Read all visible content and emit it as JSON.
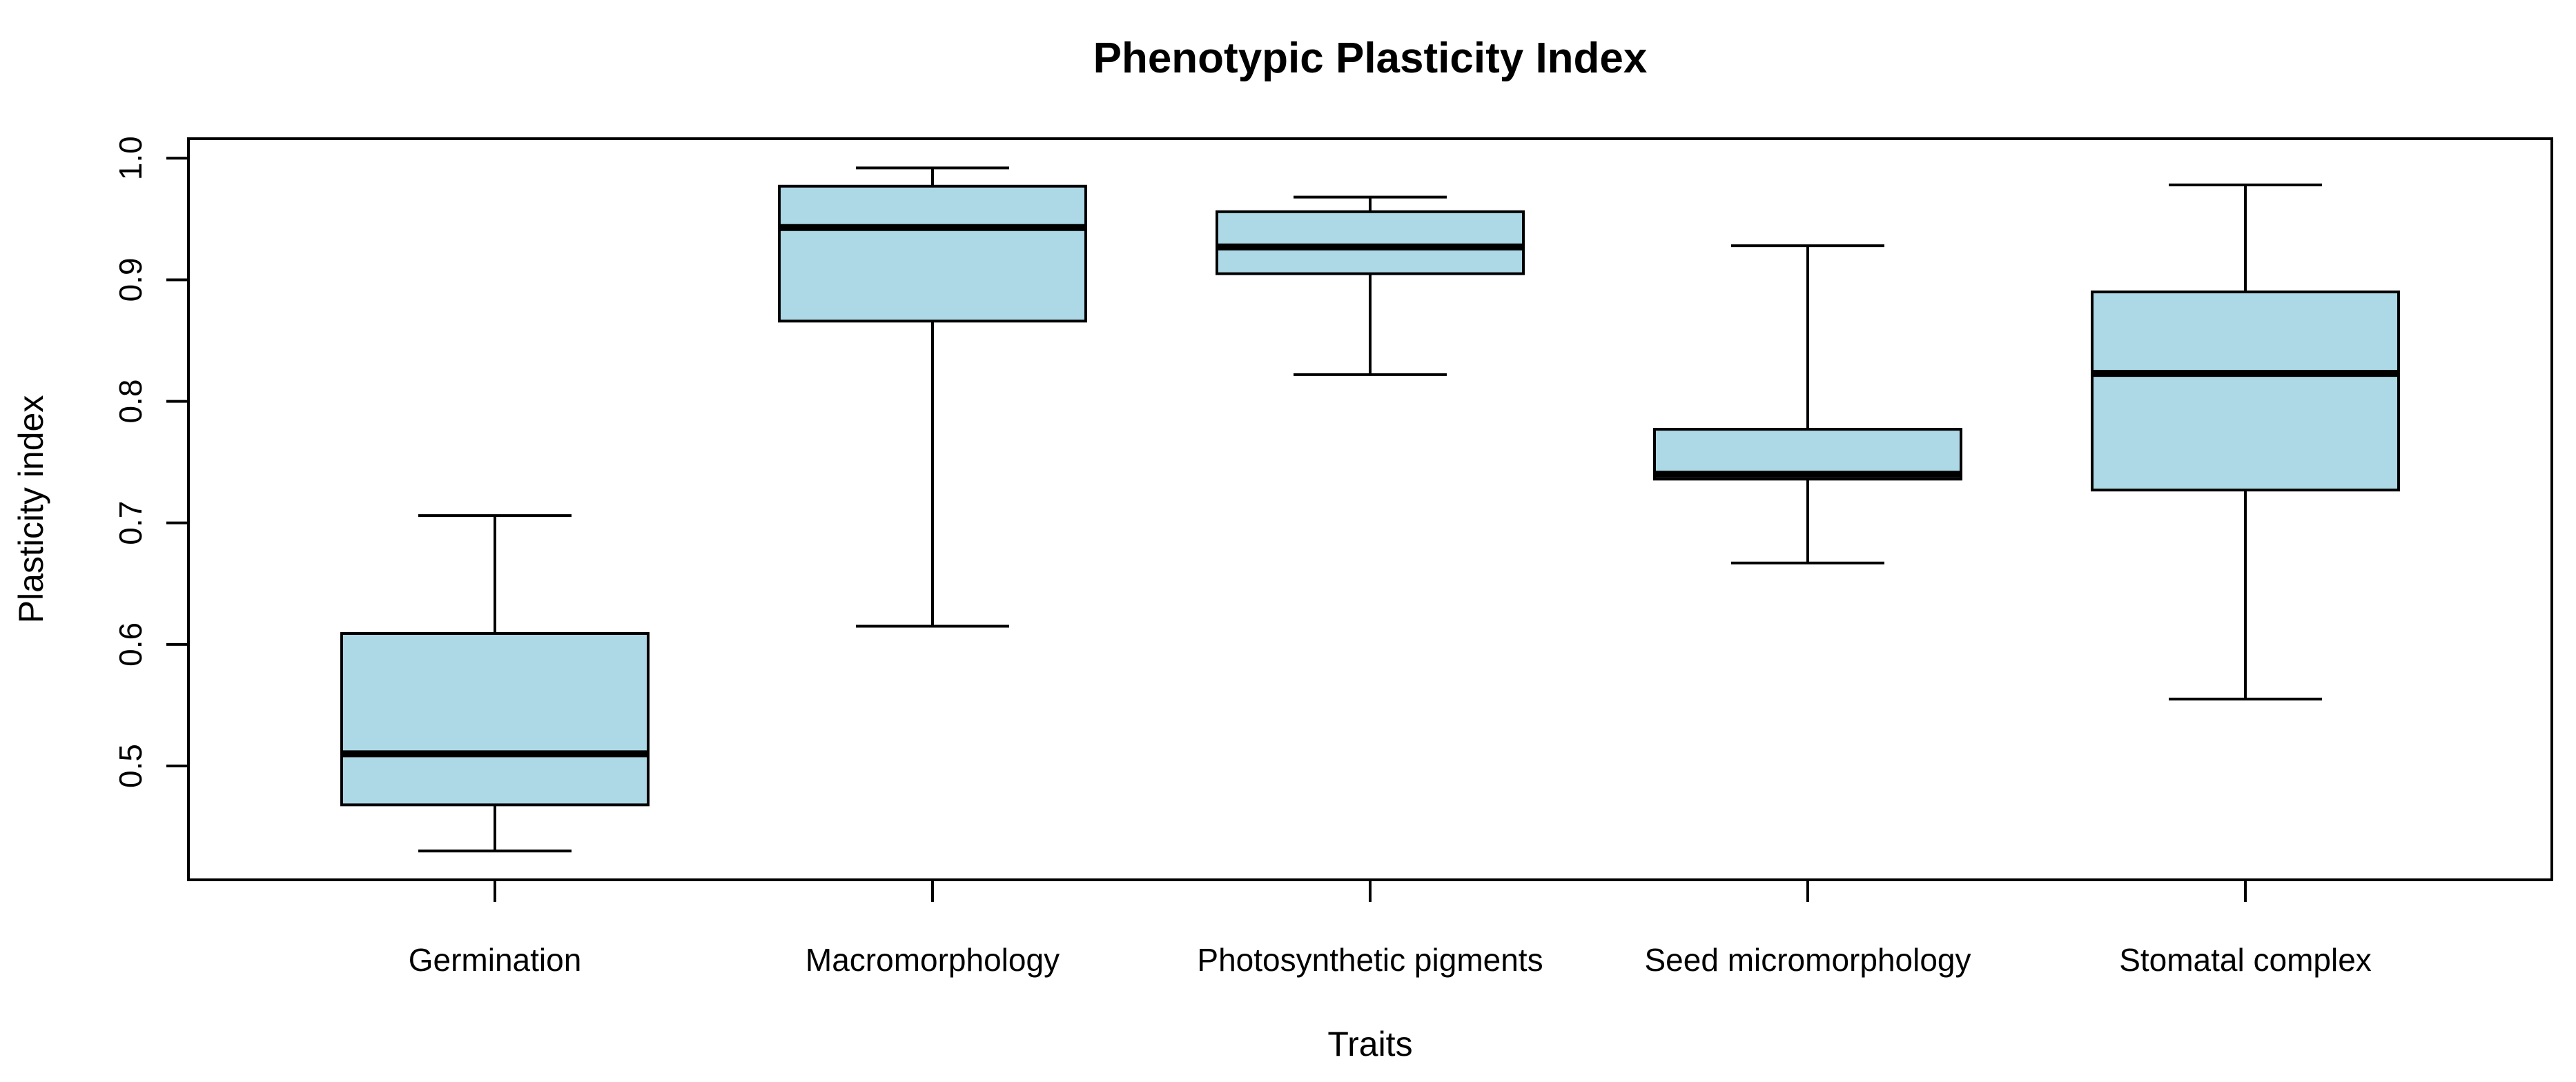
{
  "page": {
    "background": "#FFFFFF"
  },
  "chart_data": {
    "type": "boxplot",
    "title": "Phenotypic Plasticity Index",
    "xlabel": "Traits",
    "ylabel": "Plasticity index",
    "categories": [
      "Germination",
      "Macromorphology",
      "Photosynthetic pigments",
      "Seed micromorphology",
      "Stomatal complex"
    ],
    "series": [
      {
        "name": "Germination",
        "whisker_low": 0.43,
        "q1": 0.468,
        "median": 0.51,
        "q3": 0.609,
        "whisker_high": 0.706
      },
      {
        "name": "Macromorphology",
        "whisker_low": 0.615,
        "q1": 0.866,
        "median": 0.943,
        "q3": 0.977,
        "whisker_high": 0.992
      },
      {
        "name": "Photosynthetic pigments",
        "whisker_low": 0.822,
        "q1": 0.905,
        "median": 0.927,
        "q3": 0.956,
        "whisker_high": 0.968
      },
      {
        "name": "Seed micromorphology",
        "whisker_low": 0.667,
        "q1": 0.736,
        "median": 0.74,
        "q3": 0.777,
        "whisker_high": 0.928
      },
      {
        "name": "Stomatal complex",
        "whisker_low": 0.555,
        "q1": 0.727,
        "median": 0.823,
        "q3": 0.89,
        "whisker_high": 0.978
      }
    ],
    "yticks": {
      "values": [
        0.5,
        0.6,
        0.7,
        0.8,
        0.9,
        1.0
      ],
      "labels": [
        "0.5",
        "0.6",
        "0.7",
        "0.8",
        "0.9",
        "1.0"
      ]
    },
    "ylim": [
      0.405,
      1.016
    ],
    "grid": false,
    "legend": null,
    "frame": true,
    "colors": {
      "box_fill": "#ADD8E6",
      "line": "#000000",
      "background": "#FFFFFF"
    }
  }
}
